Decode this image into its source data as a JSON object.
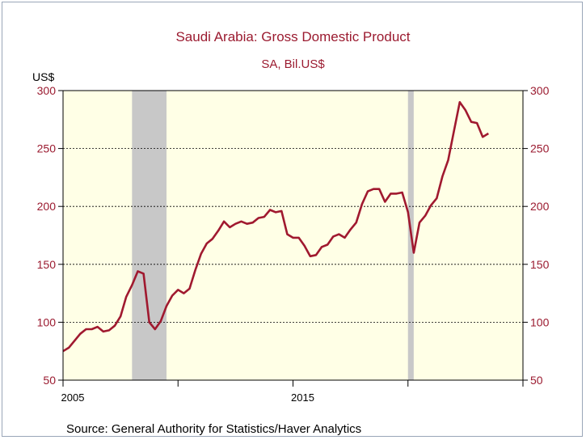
{
  "chart_data": {
    "type": "line",
    "title": "Saudi Arabia: Gross Domestic Product",
    "subtitle": "SA, Bil.US$",
    "unit_label": "US$",
    "source": "Source:  General Authority for Statistics/Haver Analytics",
    "ylim": [
      50,
      300
    ],
    "y_ticks": [
      50,
      100,
      150,
      200,
      250,
      300
    ],
    "xlim": [
      2005.0,
      2025.0
    ],
    "x_tick_labels": [
      {
        "x": 2005,
        "label": "2005"
      },
      {
        "x": 2015,
        "label": "2015"
      }
    ],
    "x_minor_ticks": [
      2010,
      2020,
      2025
    ],
    "grid": "horizontal dotted",
    "shaded_periods": [
      [
        2008.0,
        2009.5
      ],
      [
        2020.0,
        2020.25
      ]
    ],
    "colors": {
      "line": "#a0192f",
      "plot_background": "#ffffe6",
      "shading": "#c8c8c8",
      "axis_labels": "#9b1b30"
    },
    "series": [
      {
        "values": [
          [
            2005.0,
            75
          ],
          [
            2005.25,
            78
          ],
          [
            2005.5,
            84
          ],
          [
            2005.75,
            90
          ],
          [
            2006.0,
            94
          ],
          [
            2006.25,
            94
          ],
          [
            2006.5,
            96
          ],
          [
            2006.75,
            92
          ],
          [
            2007.0,
            93
          ],
          [
            2007.25,
            97
          ],
          [
            2007.5,
            105
          ],
          [
            2007.75,
            122
          ],
          [
            2008.0,
            132
          ],
          [
            2008.25,
            144
          ],
          [
            2008.5,
            142
          ],
          [
            2008.75,
            100
          ],
          [
            2009.0,
            94
          ],
          [
            2009.25,
            101
          ],
          [
            2009.5,
            114
          ],
          [
            2009.75,
            123
          ],
          [
            2010.0,
            128
          ],
          [
            2010.25,
            125
          ],
          [
            2010.5,
            129
          ],
          [
            2010.75,
            145
          ],
          [
            2011.0,
            159
          ],
          [
            2011.25,
            168
          ],
          [
            2011.5,
            172
          ],
          [
            2011.75,
            179
          ],
          [
            2012.0,
            187
          ],
          [
            2012.25,
            182
          ],
          [
            2012.5,
            185
          ],
          [
            2012.75,
            187
          ],
          [
            2013.0,
            185
          ],
          [
            2013.25,
            186
          ],
          [
            2013.5,
            190
          ],
          [
            2013.75,
            191
          ],
          [
            2014.0,
            197
          ],
          [
            2014.25,
            195
          ],
          [
            2014.5,
            196
          ],
          [
            2014.75,
            176
          ],
          [
            2015.0,
            173
          ],
          [
            2015.25,
            173
          ],
          [
            2015.5,
            166
          ],
          [
            2015.75,
            157
          ],
          [
            2016.0,
            158
          ],
          [
            2016.25,
            165
          ],
          [
            2016.5,
            167
          ],
          [
            2016.75,
            174
          ],
          [
            2017.0,
            176
          ],
          [
            2017.25,
            173
          ],
          [
            2017.5,
            180
          ],
          [
            2017.75,
            186
          ],
          [
            2018.0,
            202
          ],
          [
            2018.25,
            213
          ],
          [
            2018.5,
            215
          ],
          [
            2018.75,
            215
          ],
          [
            2019.0,
            204
          ],
          [
            2019.25,
            211
          ],
          [
            2019.5,
            211
          ],
          [
            2019.75,
            212
          ],
          [
            2020.0,
            195
          ],
          [
            2020.25,
            160
          ],
          [
            2020.5,
            186
          ],
          [
            2020.75,
            192
          ],
          [
            2021.0,
            201
          ],
          [
            2021.25,
            207
          ],
          [
            2021.5,
            226
          ],
          [
            2021.75,
            240
          ],
          [
            2022.0,
            265
          ],
          [
            2022.25,
            290
          ],
          [
            2022.5,
            283
          ],
          [
            2022.75,
            273
          ],
          [
            2023.0,
            272
          ],
          [
            2023.25,
            260
          ],
          [
            2023.5,
            263
          ]
        ]
      }
    ]
  }
}
